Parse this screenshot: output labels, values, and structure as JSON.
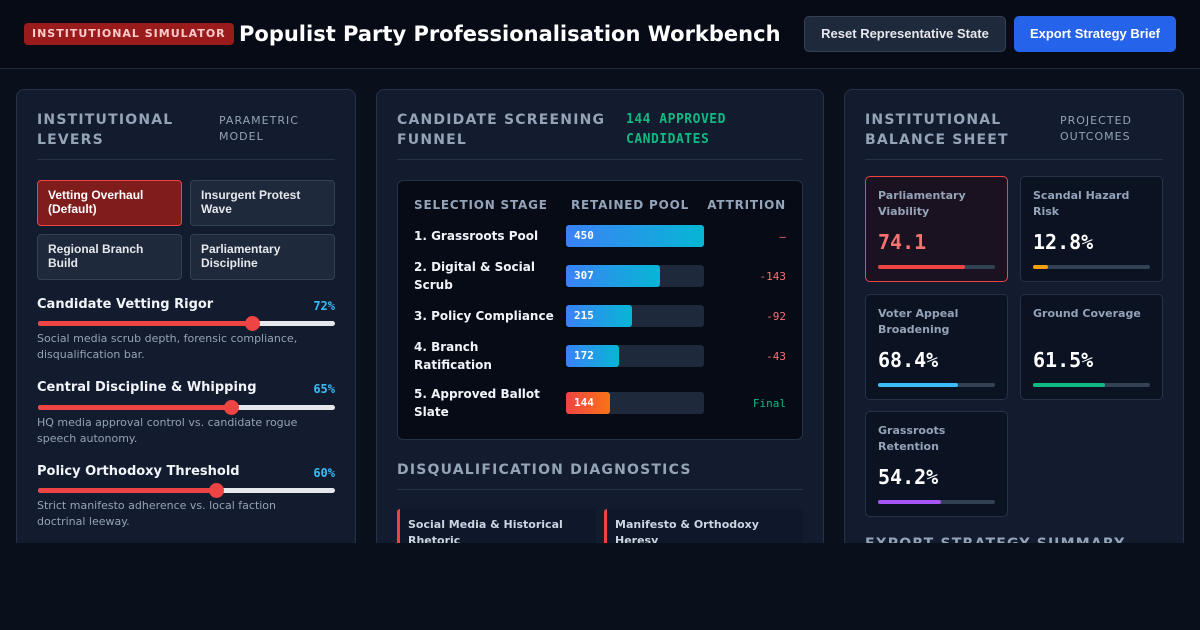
{
  "header": {
    "badge": "INSTITUTIONAL SIMULATOR",
    "title": "Populist Party Professionalisation Workbench",
    "reset_label": "Reset Representative State",
    "export_label": "Export Strategy Brief"
  },
  "levers_panel": {
    "title_line1": "INSTITUTIONAL",
    "title_line2": "LEVERS",
    "subtitle_line1": "PARAMETRIC",
    "subtitle_line2": "MODEL",
    "presets": [
      {
        "label": "Vetting Overhaul (Default)",
        "active": true
      },
      {
        "label": "Insurgent Protest Wave",
        "active": false
      },
      {
        "label": "Regional Branch Build",
        "active": false
      },
      {
        "label": "Parliamentary Discipline",
        "active": false
      }
    ],
    "sliders": [
      {
        "label": "Candidate Vetting Rigor",
        "value_text": "72%",
        "value": 72,
        "desc": "Social media scrub depth, forensic compliance, disqualification bar."
      },
      {
        "label": "Central Discipline & Whipping",
        "value_text": "65%",
        "value": 65,
        "desc": "HQ media approval control vs. candidate rogue speech autonomy."
      },
      {
        "label": "Policy Orthodoxy Threshold",
        "value_text": "60%",
        "value": 60,
        "desc": "Strict manifesto adherence vs. local faction doctrinal leeway."
      }
    ]
  },
  "funnel_panel": {
    "title_line1": "CANDIDATE SCREENING",
    "title_line2": "FUNNEL",
    "approved_line1": "144 APPROVED",
    "approved_line2": "CANDIDATES",
    "columns": [
      "SELECTION STAGE",
      "RETAINED POOL",
      "ATTRITION"
    ],
    "max_pool": 450,
    "stages": [
      {
        "line1": "1. Grassroots Pool",
        "line2": "",
        "pool": 450,
        "attrition": "—"
      },
      {
        "line1": "2. Digital & Social",
        "line2": "Scrub",
        "pool": 307,
        "attrition": "-143"
      },
      {
        "line1": "3. Policy Compliance",
        "line2": "",
        "pool": 215,
        "attrition": "-92"
      },
      {
        "line1": "4. Branch",
        "line2": "Ratification",
        "pool": 172,
        "attrition": "-43"
      },
      {
        "line1": "5. Approved Ballot",
        "line2": "Slate",
        "pool": 144,
        "attrition": "Final"
      }
    ],
    "diagnostics_title": "DISQUALIFICATION DIAGNOSTICS",
    "diagnostics": [
      {
        "line1": "Social Media & Historical",
        "line2": "Rhetoric"
      },
      {
        "line1": "Manifesto & Orthodoxy",
        "line2": "Heresy"
      }
    ]
  },
  "balance_panel": {
    "title_line1": "INSTITUTIONAL",
    "title_line2": "BALANCE SHEET",
    "subtitle_line1": "PROJECTED",
    "subtitle_line2": "OUTCOMES",
    "metrics": [
      {
        "line1": "Parliamentary",
        "line2": "Viability",
        "value_text": "74.1",
        "level": 0.741,
        "color": "#ef4444",
        "alert": true
      },
      {
        "line1": "Scandal Hazard",
        "line2": "Risk",
        "value_text": "12.8%",
        "level": 0.128,
        "color": "#f59e0b",
        "alert": false
      },
      {
        "line1": "Voter Appeal",
        "line2": "Broadening",
        "value_text": "68.4%",
        "level": 0.684,
        "color": "#38bdf8",
        "alert": false
      },
      {
        "line1": "Ground Coverage",
        "line2": "",
        "value_text": "61.5%",
        "level": 0.615,
        "color": "#10b981",
        "alert": false
      },
      {
        "line1": "Grassroots",
        "line2": "Retention",
        "value_text": "54.2%",
        "level": 0.542,
        "color": "#a855f7",
        "alert": false
      }
    ],
    "export_title": "EXPORT STRATEGY SUMMARY"
  }
}
